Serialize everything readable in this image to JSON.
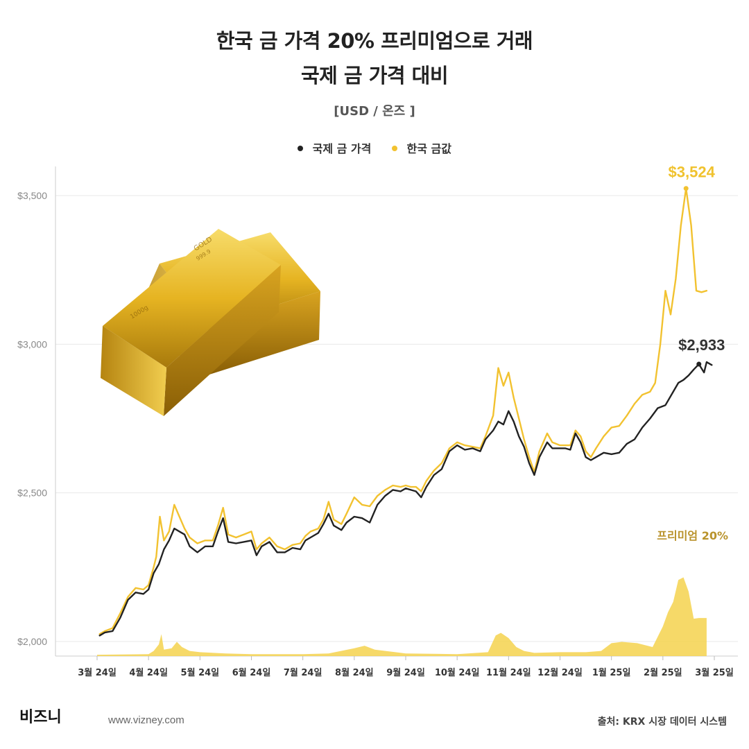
{
  "header": {
    "title_line1": "한국 금 가격 20% 프리미엄으로 거래",
    "title_line2": "국제 금 가격 대비",
    "unit": "[USD / 온즈 ]"
  },
  "legend": [
    {
      "label": "국제 금 가격",
      "color": "#222222"
    },
    {
      "label": "한국 금값",
      "color": "#f2c230"
    }
  ],
  "footer": {
    "brand": "비즈니",
    "site": "www.vizney.com",
    "source": "출처: KRX 시장 데이터 시스템"
  },
  "chart_data": {
    "type": "line",
    "y_ticks": [
      "$2,000",
      "$2,500",
      "$3,000",
      "$3,500"
    ],
    "y_values": [
      2000,
      2500,
      3000,
      3500
    ],
    "ylim": [
      1950,
      3650
    ],
    "x_labels": [
      "3월 24일",
      "4월 24일",
      "5월 24일",
      "6월 24일",
      "7월 24일",
      "8월 24일",
      "9월 24일",
      "10월 24일",
      "11월 24일",
      "12월 24일",
      "1월 25일",
      "2월 25일",
      "3월 25일"
    ],
    "x_label_pos": [
      0.0,
      1.0,
      2.0,
      3.0,
      4.0,
      5.0,
      6.0,
      7.0,
      8.0,
      9.0,
      10.0,
      11.0,
      12.0
    ],
    "xlim": [
      -0.3,
      12.3
    ],
    "series": [
      {
        "name": "국제 금 가격",
        "color": "#222222",
        "points": [
          [
            0.05,
            2020
          ],
          [
            0.15,
            2030
          ],
          [
            0.3,
            2035
          ],
          [
            0.45,
            2080
          ],
          [
            0.6,
            2140
          ],
          [
            0.75,
            2165
          ],
          [
            0.9,
            2160
          ],
          [
            1.0,
            2175
          ],
          [
            1.1,
            2230
          ],
          [
            1.2,
            2260
          ],
          [
            1.3,
            2310
          ],
          [
            1.4,
            2340
          ],
          [
            1.5,
            2380
          ],
          [
            1.6,
            2370
          ],
          [
            1.7,
            2360
          ],
          [
            1.8,
            2320
          ],
          [
            1.95,
            2300
          ],
          [
            2.1,
            2320
          ],
          [
            2.25,
            2320
          ],
          [
            2.35,
            2370
          ],
          [
            2.45,
            2415
          ],
          [
            2.55,
            2335
          ],
          [
            2.7,
            2330
          ],
          [
            2.85,
            2335
          ],
          [
            3.0,
            2340
          ],
          [
            3.1,
            2290
          ],
          [
            3.2,
            2320
          ],
          [
            3.35,
            2335
          ],
          [
            3.5,
            2300
          ],
          [
            3.65,
            2300
          ],
          [
            3.8,
            2315
          ],
          [
            3.95,
            2310
          ],
          [
            4.05,
            2340
          ],
          [
            4.15,
            2350
          ],
          [
            4.3,
            2365
          ],
          [
            4.4,
            2395
          ],
          [
            4.5,
            2430
          ],
          [
            4.6,
            2390
          ],
          [
            4.75,
            2375
          ],
          [
            4.85,
            2400
          ],
          [
            5.0,
            2420
          ],
          [
            5.15,
            2415
          ],
          [
            5.3,
            2400
          ],
          [
            5.45,
            2460
          ],
          [
            5.6,
            2490
          ],
          [
            5.75,
            2510
          ],
          [
            5.9,
            2505
          ],
          [
            6.0,
            2515
          ],
          [
            6.1,
            2510
          ],
          [
            6.2,
            2505
          ],
          [
            6.3,
            2485
          ],
          [
            6.4,
            2520
          ],
          [
            6.55,
            2560
          ],
          [
            6.7,
            2580
          ],
          [
            6.85,
            2640
          ],
          [
            7.0,
            2660
          ],
          [
            7.15,
            2645
          ],
          [
            7.3,
            2650
          ],
          [
            7.45,
            2640
          ],
          [
            7.55,
            2680
          ],
          [
            7.7,
            2710
          ],
          [
            7.8,
            2740
          ],
          [
            7.9,
            2730
          ],
          [
            8.0,
            2775
          ],
          [
            8.1,
            2740
          ],
          [
            8.2,
            2690
          ],
          [
            8.3,
            2655
          ],
          [
            8.4,
            2600
          ],
          [
            8.5,
            2560
          ],
          [
            8.6,
            2620
          ],
          [
            8.75,
            2670
          ],
          [
            8.85,
            2650
          ],
          [
            9.0,
            2650
          ],
          [
            9.1,
            2650
          ],
          [
            9.2,
            2645
          ],
          [
            9.3,
            2700
          ],
          [
            9.4,
            2670
          ],
          [
            9.5,
            2620
          ],
          [
            9.6,
            2610
          ],
          [
            9.7,
            2620
          ],
          [
            9.85,
            2635
          ],
          [
            10.0,
            2630
          ],
          [
            10.15,
            2635
          ],
          [
            10.3,
            2665
          ],
          [
            10.45,
            2680
          ],
          [
            10.6,
            2720
          ],
          [
            10.75,
            2750
          ],
          [
            10.9,
            2785
          ],
          [
            11.05,
            2795
          ],
          [
            11.2,
            2840
          ],
          [
            11.3,
            2870
          ],
          [
            11.4,
            2880
          ],
          [
            11.5,
            2895
          ],
          [
            11.6,
            2915
          ],
          [
            11.7,
            2933
          ],
          [
            11.8,
            2905
          ],
          [
            11.85,
            2940
          ],
          [
            11.95,
            2930
          ]
        ]
      },
      {
        "name": "한국 금값",
        "color": "#f2c230",
        "points": [
          [
            0.05,
            2025
          ],
          [
            0.15,
            2035
          ],
          [
            0.3,
            2045
          ],
          [
            0.45,
            2095
          ],
          [
            0.6,
            2150
          ],
          [
            0.75,
            2180
          ],
          [
            0.9,
            2175
          ],
          [
            1.0,
            2190
          ],
          [
            1.1,
            2250
          ],
          [
            1.15,
            2285
          ],
          [
            1.22,
            2420
          ],
          [
            1.3,
            2340
          ],
          [
            1.4,
            2370
          ],
          [
            1.5,
            2460
          ],
          [
            1.6,
            2420
          ],
          [
            1.7,
            2380
          ],
          [
            1.8,
            2350
          ],
          [
            1.95,
            2330
          ],
          [
            2.1,
            2340
          ],
          [
            2.25,
            2340
          ],
          [
            2.35,
            2390
          ],
          [
            2.45,
            2450
          ],
          [
            2.55,
            2360
          ],
          [
            2.7,
            2350
          ],
          [
            2.85,
            2360
          ],
          [
            3.0,
            2370
          ],
          [
            3.1,
            2310
          ],
          [
            3.2,
            2330
          ],
          [
            3.35,
            2350
          ],
          [
            3.5,
            2320
          ],
          [
            3.65,
            2310
          ],
          [
            3.8,
            2325
          ],
          [
            3.95,
            2330
          ],
          [
            4.05,
            2355
          ],
          [
            4.15,
            2370
          ],
          [
            4.3,
            2380
          ],
          [
            4.4,
            2410
          ],
          [
            4.5,
            2470
          ],
          [
            4.6,
            2410
          ],
          [
            4.75,
            2395
          ],
          [
            4.85,
            2430
          ],
          [
            5.0,
            2485
          ],
          [
            5.15,
            2460
          ],
          [
            5.3,
            2455
          ],
          [
            5.45,
            2490
          ],
          [
            5.6,
            2510
          ],
          [
            5.75,
            2525
          ],
          [
            5.9,
            2520
          ],
          [
            6.0,
            2525
          ],
          [
            6.1,
            2520
          ],
          [
            6.2,
            2520
          ],
          [
            6.3,
            2505
          ],
          [
            6.4,
            2540
          ],
          [
            6.55,
            2575
          ],
          [
            6.7,
            2600
          ],
          [
            6.85,
            2650
          ],
          [
            7.0,
            2670
          ],
          [
            7.15,
            2660
          ],
          [
            7.3,
            2655
          ],
          [
            7.45,
            2650
          ],
          [
            7.55,
            2690
          ],
          [
            7.7,
            2760
          ],
          [
            7.8,
            2920
          ],
          [
            7.9,
            2860
          ],
          [
            8.0,
            2905
          ],
          [
            8.1,
            2820
          ],
          [
            8.2,
            2750
          ],
          [
            8.3,
            2680
          ],
          [
            8.4,
            2620
          ],
          [
            8.5,
            2570
          ],
          [
            8.6,
            2640
          ],
          [
            8.75,
            2700
          ],
          [
            8.85,
            2670
          ],
          [
            9.0,
            2660
          ],
          [
            9.1,
            2660
          ],
          [
            9.2,
            2660
          ],
          [
            9.3,
            2710
          ],
          [
            9.4,
            2690
          ],
          [
            9.5,
            2640
          ],
          [
            9.6,
            2620
          ],
          [
            9.7,
            2650
          ],
          [
            9.85,
            2690
          ],
          [
            10.0,
            2720
          ],
          [
            10.15,
            2725
          ],
          [
            10.3,
            2760
          ],
          [
            10.45,
            2800
          ],
          [
            10.6,
            2830
          ],
          [
            10.75,
            2840
          ],
          [
            10.85,
            2870
          ],
          [
            10.95,
            3000
          ],
          [
            11.05,
            3180
          ],
          [
            11.15,
            3100
          ],
          [
            11.25,
            3220
          ],
          [
            11.35,
            3400
          ],
          [
            11.45,
            3524
          ],
          [
            11.55,
            3400
          ],
          [
            11.65,
            3180
          ],
          [
            11.75,
            3175
          ],
          [
            11.85,
            3180
          ]
        ]
      }
    ],
    "premium": {
      "label": "프리미엄 20%",
      "unit": "%",
      "max": 20,
      "points": [
        [
          0.0,
          0.2
        ],
        [
          1.0,
          0.3
        ],
        [
          1.1,
          0.8
        ],
        [
          1.2,
          1.8
        ],
        [
          1.25,
          3.4
        ],
        [
          1.3,
          1.0
        ],
        [
          1.45,
          1.2
        ],
        [
          1.55,
          2.2
        ],
        [
          1.65,
          1.4
        ],
        [
          1.8,
          0.8
        ],
        [
          2.0,
          0.6
        ],
        [
          2.5,
          0.4
        ],
        [
          3.0,
          0.3
        ],
        [
          4.0,
          0.3
        ],
        [
          4.5,
          0.4
        ],
        [
          5.0,
          1.2
        ],
        [
          5.2,
          1.6
        ],
        [
          5.4,
          1.0
        ],
        [
          5.8,
          0.6
        ],
        [
          6.0,
          0.4
        ],
        [
          7.0,
          0.3
        ],
        [
          7.6,
          0.6
        ],
        [
          7.75,
          3.2
        ],
        [
          7.85,
          3.6
        ],
        [
          8.0,
          2.8
        ],
        [
          8.15,
          1.4
        ],
        [
          8.3,
          0.8
        ],
        [
          8.5,
          0.5
        ],
        [
          9.0,
          0.6
        ],
        [
          9.5,
          0.6
        ],
        [
          9.8,
          0.8
        ],
        [
          10.0,
          2.0
        ],
        [
          10.2,
          2.2
        ],
        [
          10.5,
          2.0
        ],
        [
          10.8,
          1.4
        ],
        [
          11.0,
          4.6
        ],
        [
          11.1,
          6.8
        ],
        [
          11.2,
          8.4
        ],
        [
          11.3,
          11.8
        ],
        [
          11.4,
          12.2
        ],
        [
          11.5,
          10.0
        ],
        [
          11.6,
          5.8
        ],
        [
          11.7,
          5.9
        ],
        [
          11.85,
          5.9
        ]
      ]
    },
    "annotations": [
      {
        "text": "$3,524",
        "x": 11.45,
        "y": 3524,
        "series": "한국 금값"
      },
      {
        "text": "$2,933",
        "x": 11.7,
        "y": 2933,
        "series": "국제 금 가격"
      }
    ],
    "grid": "horizontal",
    "legend_position": "top-center"
  }
}
